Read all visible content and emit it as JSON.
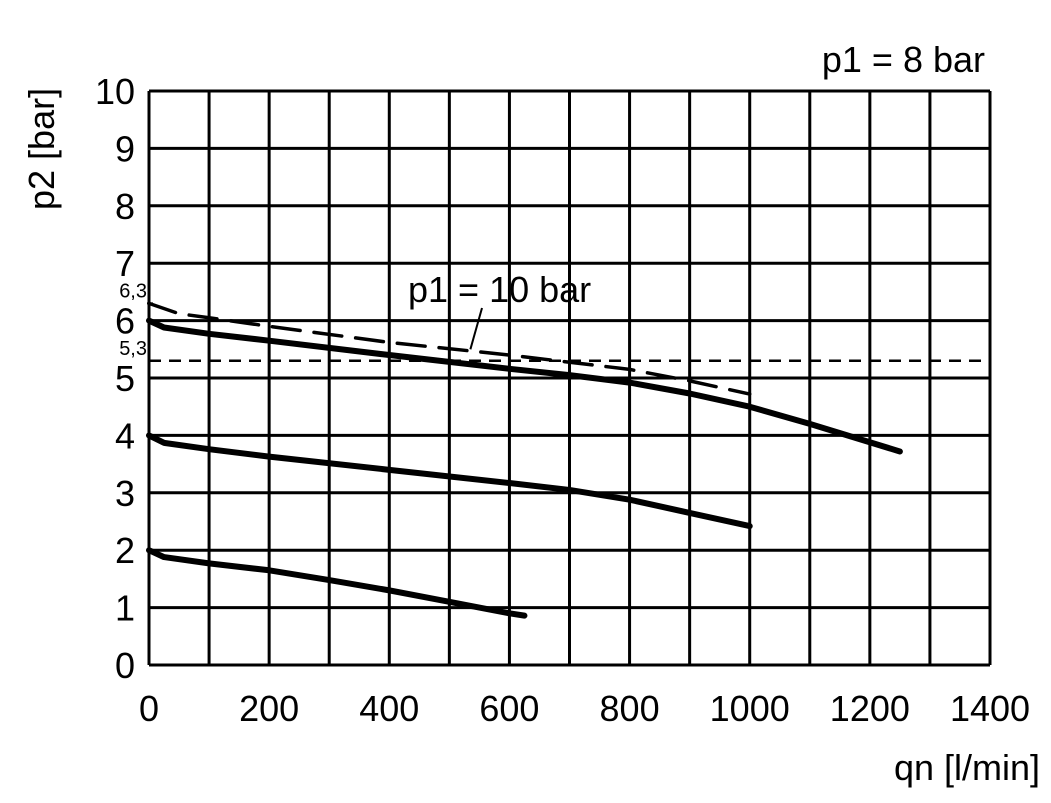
{
  "chart_data": {
    "type": "line",
    "title": "p1 = 8 bar",
    "xlabel": "qn [l/min]",
    "ylabel": "p2 [bar]",
    "xlim": [
      0,
      1400
    ],
    "ylim": [
      0,
      10
    ],
    "xticks": [
      0,
      200,
      400,
      600,
      800,
      1000,
      1200,
      1400
    ],
    "yticks": [
      0,
      1,
      2,
      3,
      4,
      5,
      6,
      7,
      8,
      9,
      10
    ],
    "grid": true,
    "grid_x_step": 100,
    "grid_y_step": 1,
    "series": [
      {
        "style": "solid",
        "x": [
          0,
          25,
          100,
          200,
          400,
          600,
          700,
          800,
          900,
          1000,
          1100,
          1250
        ],
        "y": [
          6,
          5.88,
          5.77,
          5.65,
          5.4,
          5.16,
          5.05,
          4.92,
          4.73,
          4.5,
          4.2,
          3.72
        ]
      },
      {
        "style": "solid",
        "x": [
          0,
          25,
          100,
          200,
          400,
          600,
          700,
          800,
          900,
          1000
        ],
        "y": [
          4,
          3.87,
          3.76,
          3.63,
          3.4,
          3.17,
          3.05,
          2.88,
          2.65,
          2.42
        ]
      },
      {
        "style": "solid",
        "x": [
          0,
          25,
          100,
          200,
          300,
          400,
          500,
          600,
          625
        ],
        "y": [
          2,
          1.88,
          1.77,
          1.65,
          1.48,
          1.3,
          1.1,
          0.9,
          0.86
        ]
      },
      {
        "name": "p1 = 10 bar",
        "style": "dashed",
        "x": [
          0,
          50,
          100,
          200,
          400,
          600,
          800,
          900,
          1000
        ],
        "y": [
          6.3,
          6.12,
          6.05,
          5.9,
          5.62,
          5.4,
          5.15,
          4.95,
          4.72
        ]
      }
    ],
    "reference_lines": [
      {
        "label": "6,3",
        "y": 6.3
      },
      {
        "label": "5,3",
        "y": 5.3,
        "style": "dashed"
      }
    ],
    "annotations": [
      {
        "text": "p1 = 10 bar",
        "points_to": [
          535,
          5.5
        ]
      }
    ]
  }
}
